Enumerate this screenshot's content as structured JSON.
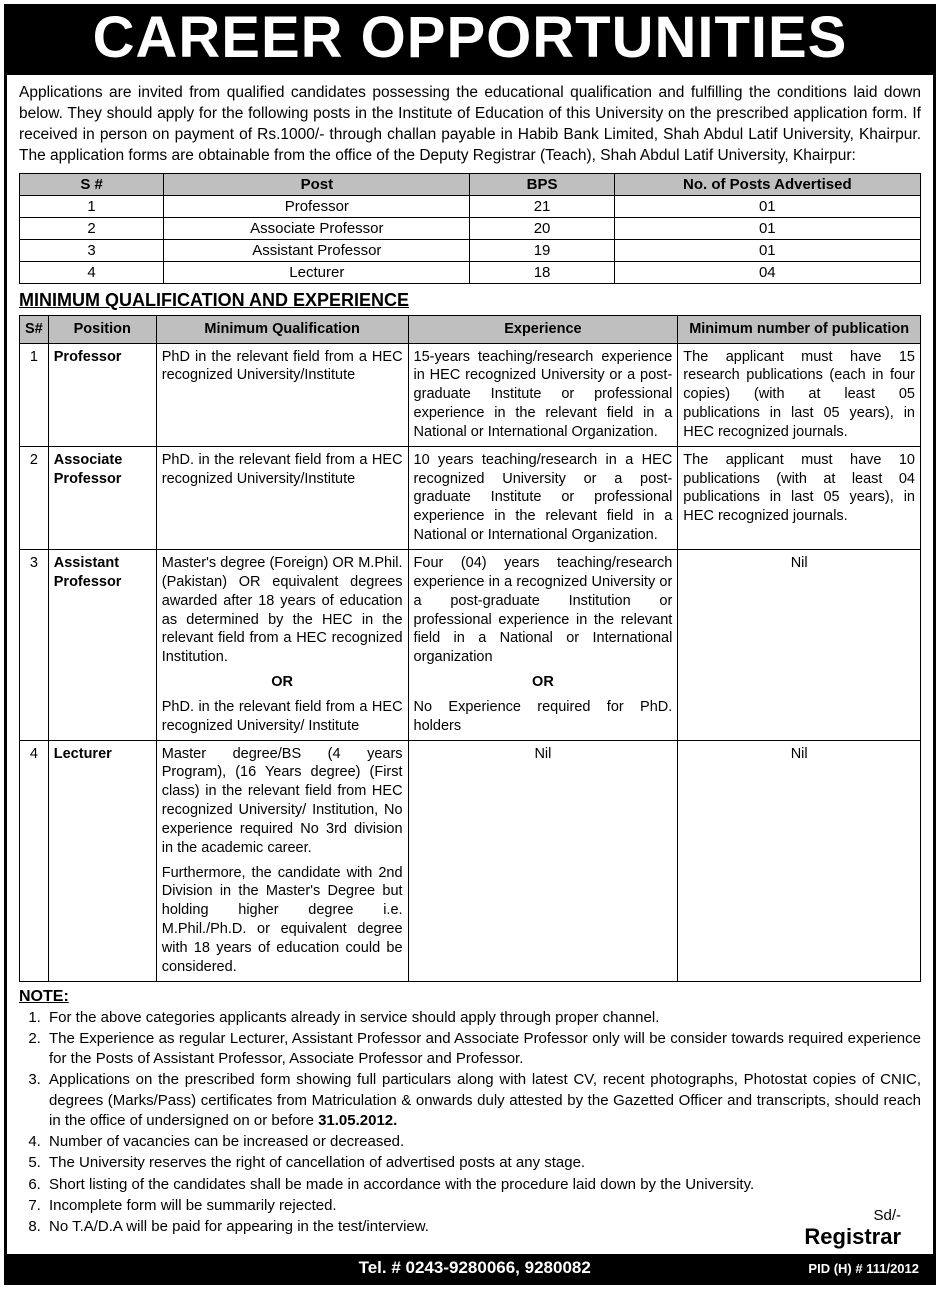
{
  "header": {
    "title": "CAREER OPPORTUNITIES"
  },
  "intro": "Applications are invited from qualified candidates possessing the educational qualification and fulfilling the conditions laid down below. They should apply for the following posts in the Institute of Education of this University on the prescribed application form. If received in person on payment of Rs.1000/- through challan payable in Habib Bank Limited, Shah Abdul Latif University, Khairpur. The application forms are obtainable from the office of the Deputy Registrar (Teach), Shah Abdul Latif University, Khairpur:",
  "posts_table": {
    "headers": {
      "sno": "S #",
      "post": "Post",
      "bps": "BPS",
      "nposts": "No. of Posts Advertised"
    },
    "col_widths": [
      "16%",
      "34%",
      "16%",
      "34%"
    ],
    "rows": [
      {
        "sno": "1",
        "post": "Professor",
        "bps": "21",
        "nposts": "01"
      },
      {
        "sno": "2",
        "post": "Associate Professor",
        "bps": "20",
        "nposts": "01"
      },
      {
        "sno": "3",
        "post": "Assistant Professor",
        "bps": "19",
        "nposts": "01"
      },
      {
        "sno": "4",
        "post": "Lecturer",
        "bps": "18",
        "nposts": "04"
      }
    ]
  },
  "qual_section_title": "MINIMUM QUALIFICATION AND EXPERIENCE",
  "qual_table": {
    "headers": {
      "sno": "S#",
      "position": "Position",
      "minqual": "Minimum Qualification",
      "experience": "Experience",
      "pubs": "Minimum number of publication"
    },
    "col_widths": [
      "3%",
      "12%",
      "28%",
      "30%",
      "27%"
    ],
    "rows": [
      {
        "sno": "1",
        "position": "Professor",
        "minqual": "PhD in the relevant field from a HEC recognized University/Institute",
        "experience": "15-years teaching/research experience in HEC recognized University or a post-graduate Institute or professional experience in the relevant field in a National or International Organization.",
        "pubs": "The applicant must have 15 research publications (each in four copies) (with at least 05 publications in last 05 years), in HEC recognized journals."
      },
      {
        "sno": "2",
        "position": "Associate Professor",
        "minqual": "PhD. in the relevant field from a HEC recognized University/Institute",
        "experience": "10 years teaching/research in a HEC recognized University or a post-graduate Institute or professional experience in the relevant field in a National or International Organization.",
        "pubs": "The applicant must have 10 publications (with at least 04 publications in last 05 years), in HEC recognized journals."
      },
      {
        "sno": "3",
        "position": "Assistant Professor",
        "minqual_a": "Master's degree (Foreign) OR M.Phil. (Pakistan) OR equivalent degrees awarded after 18 years of education as determined by the HEC in the relevant field from a HEC recognized Institution.",
        "minqual_or": "OR",
        "minqual_b": "PhD. in the relevant field from a HEC recognized University/ Institute",
        "experience_a": "Four (04) years teaching/research experience in a recognized University or a post-graduate Institution or professional experience in the relevant field in a National or International organization",
        "experience_or": "OR",
        "experience_b": "No Experience required for PhD. holders",
        "pubs": "Nil"
      },
      {
        "sno": "4",
        "position": "Lecturer",
        "minqual_a": "Master degree/BS (4 years Program), (16 Years degree) (First class) in the relevant field from HEC recognized University/ Institution, No experience required No 3rd division in the academic career.",
        "minqual_b": "Furthermore, the candidate with 2nd Division in the Master's Degree but holding higher degree i.e. M.Phil./Ph.D. or equivalent degree with 18 years of education could be considered.",
        "experience": "Nil",
        "pubs": "Nil"
      }
    ]
  },
  "note_heading": "NOTE:",
  "notes": [
    "For the above categories applicants already in service should apply through proper channel.",
    "The Experience as regular Lecturer, Assistant Professor and Associate Professor only will be consider towards required experience for the Posts of Assistant Professor, Associate Professor and Professor.",
    "Applications on the prescribed form showing full particulars along with latest CV, recent photographs, Photostat copies of CNIC, degrees (Marks/Pass) certificates from Matriculation & onwards duly attested by the Gazetted Officer and transcripts, should reach in the office of undersigned on or before <b>31.05.2012.</b>",
    "Number of vacancies can be increased or decreased.",
    "The University reserves the right of cancellation of advertised posts at any stage.",
    "Short listing of the candidates shall be made in accordance with the procedure laid down by the University.",
    "Incomplete form will be summarily rejected.",
    "No T.A/D.A will be paid for appearing in the test/interview."
  ],
  "signature": {
    "sd": "Sd/-",
    "registrar": "Registrar"
  },
  "footer": {
    "tel": "Tel. # 0243-9280066, 9280082",
    "pid": "PID (H) # 111/2012"
  }
}
